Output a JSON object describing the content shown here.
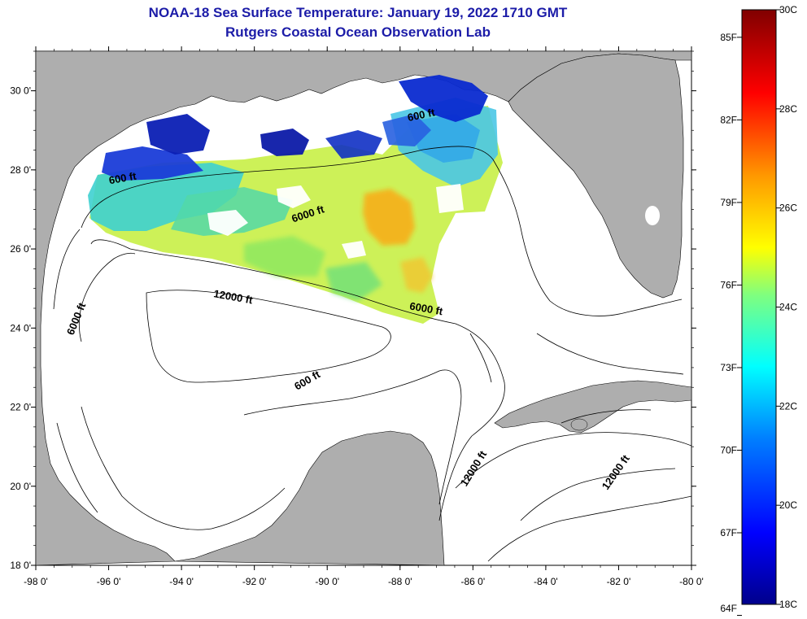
{
  "title": {
    "line1": "NOAA-18 Sea Surface Temperature:  January 19, 2022 1710 GMT",
    "line2": "Rutgers Coastal Ocean Observation Lab"
  },
  "map": {
    "lon_range": [
      -98,
      -80
    ],
    "lat_range": [
      18,
      31
    ],
    "lon_labels": [
      {
        "lon": -98,
        "text": "-98 0'"
      },
      {
        "lon": -96,
        "text": "-96 0'"
      },
      {
        "lon": -94,
        "text": "-94 0'"
      },
      {
        "lon": -92,
        "text": "-92 0'"
      },
      {
        "lon": -90,
        "text": "-90 0'"
      },
      {
        "lon": -88,
        "text": "-88 0'"
      },
      {
        "lon": -86,
        "text": "-86 0'"
      },
      {
        "lon": -84,
        "text": "-84 0'"
      },
      {
        "lon": -82,
        "text": "-82 0'"
      },
      {
        "lon": -80,
        "text": "-80 0'"
      }
    ],
    "lat_labels": [
      {
        "lat": 30,
        "text": "30 0'"
      },
      {
        "lat": 28,
        "text": "28 0'"
      },
      {
        "lat": 26,
        "text": "26 0'"
      },
      {
        "lat": 24,
        "text": "24 0'"
      },
      {
        "lat": 22,
        "text": "22 0'"
      },
      {
        "lat": 20,
        "text": "20 0'"
      },
      {
        "lat": 18,
        "text": "18 0'"
      }
    ],
    "depth_labels": [
      {
        "text": "600 ft",
        "lon": -95.6,
        "lat": 27.7,
        "angle": -10
      },
      {
        "text": "600 ft",
        "lon": -87.4,
        "lat": 29.3,
        "angle": -12
      },
      {
        "text": "6000 ft",
        "lon": -90.5,
        "lat": 26.8,
        "angle": -18
      },
      {
        "text": "12000 ft",
        "lon": -92.6,
        "lat": 24.7,
        "angle": 10
      },
      {
        "text": "6000 ft",
        "lon": -96.8,
        "lat": 24.2,
        "angle": -68
      },
      {
        "text": "6000 ft",
        "lon": -87.3,
        "lat": 24.4,
        "angle": 10
      },
      {
        "text": "600 ft",
        "lon": -90.5,
        "lat": 22.6,
        "angle": -30
      },
      {
        "text": "12000 ft",
        "lon": -85.9,
        "lat": 20.4,
        "angle": -58
      },
      {
        "text": "12000 ft",
        "lon": -82.0,
        "lat": 20.3,
        "angle": -55
      }
    ]
  },
  "colorbar": {
    "top_temp_c": 30,
    "bottom_temp_c": 18,
    "celsius_labels": [
      "30C",
      "28C",
      "26C",
      "24C",
      "22C",
      "20C",
      "18C"
    ],
    "fahrenheit_labels": [
      "85F",
      "82F",
      "79F",
      "76F",
      "73F",
      "70F",
      "67F",
      "64F"
    ],
    "fahrenheit_values": [
      85,
      82,
      79,
      76,
      73,
      70,
      67,
      64
    ],
    "celsius_values": [
      30,
      28,
      26,
      24,
      22,
      20,
      18
    ]
  },
  "colors": {
    "land": "#aeaeae",
    "water": "#ffffff",
    "title": "#1c1ca8"
  }
}
